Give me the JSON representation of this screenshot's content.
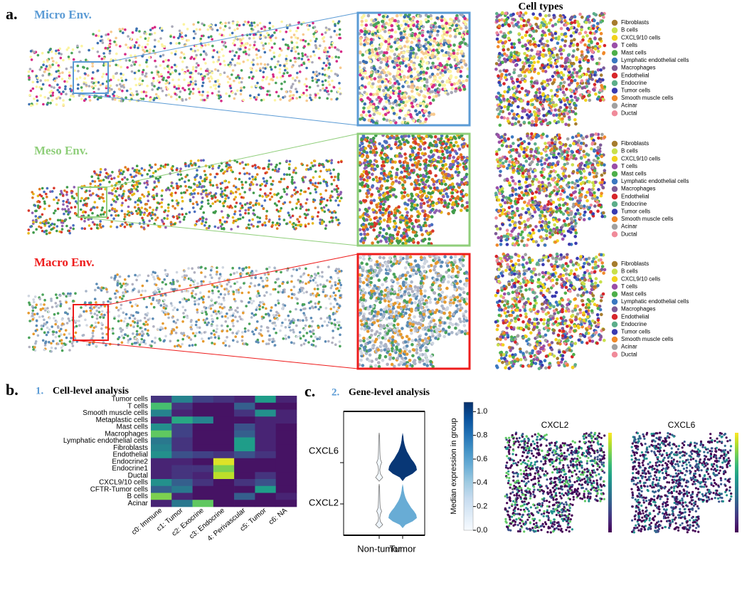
{
  "panel_a": {
    "label": "a.",
    "cell_types_title": "Cell types",
    "rows": [
      {
        "title": "Micro Env.",
        "color": "#5b9bd5"
      },
      {
        "title": "Meso Env.",
        "color": "#8fce7a"
      },
      {
        "title": "Macro Env.",
        "color": "#ee1c1c"
      }
    ],
    "cell_types": [
      {
        "name": "Fibroblasts",
        "color": "#a67c2e"
      },
      {
        "name": "B cells",
        "color": "#c9e04a"
      },
      {
        "name": "CXCL9/10 cells",
        "color": "#f2d21b"
      },
      {
        "name": "T cells",
        "color": "#9b4fa8"
      },
      {
        "name": "Mast cells",
        "color": "#4daf4a"
      },
      {
        "name": "Lymphatic endothelial cells",
        "color": "#3b78c0"
      },
      {
        "name": "Macrophages",
        "color": "#7d5a96"
      },
      {
        "name": "Endothelial",
        "color": "#d7262b"
      },
      {
        "name": "Endocrine",
        "color": "#5cae8a"
      },
      {
        "name": "Tumor cells",
        "color": "#3a3ab0"
      },
      {
        "name": "Smooth muscle cells",
        "color": "#f0892a"
      },
      {
        "name": "Acinar",
        "color": "#a0a0a0"
      },
      {
        "name": "Ductal",
        "color": "#f08a9a"
      }
    ]
  },
  "panel_b": {
    "label": "b.",
    "step": "1.",
    "title": "Cell-level analysis",
    "heatmap": {
      "rows": [
        "Tumor cells",
        "T cells",
        "Smooth muscle cells",
        "Metaplastic cells",
        "Mast cells",
        "Macrophages",
        "Lymphatic endothelial cells",
        "Fibroblasts",
        "Endothelial",
        "Endocrine2",
        "Endocrine1",
        "Ductal",
        "CXCL9/10 cells",
        "CFTR-Tumor cells",
        "B cells",
        "Acinar"
      ],
      "columns": [
        "c0: Immune",
        "c1: Tumor",
        "c2: Exocrine",
        "c3: Endocrine",
        "4: Perivascular",
        "c5: Tumor",
        "c6: NA"
      ],
      "values": [
        [
          0.15,
          0.45,
          0.2,
          0.15,
          0.1,
          0.55,
          0.1
        ],
        [
          0.7,
          0.15,
          0.05,
          0.05,
          0.3,
          0.05,
          0.05
        ],
        [
          0.45,
          0.1,
          0.05,
          0.05,
          0.15,
          0.5,
          0.1
        ],
        [
          0.1,
          0.6,
          0.45,
          0.05,
          0.05,
          0.1,
          0.1
        ],
        [
          0.5,
          0.2,
          0.05,
          0.05,
          0.25,
          0.1,
          0.05
        ],
        [
          0.75,
          0.2,
          0.05,
          0.05,
          0.3,
          0.1,
          0.05
        ],
        [
          0.4,
          0.15,
          0.05,
          0.05,
          0.55,
          0.1,
          0.05
        ],
        [
          0.45,
          0.15,
          0.05,
          0.05,
          0.55,
          0.1,
          0.05
        ],
        [
          0.5,
          0.25,
          0.2,
          0.15,
          0.25,
          0.15,
          0.05
        ],
        [
          0.1,
          0.1,
          0.05,
          0.95,
          0.05,
          0.05,
          0.05
        ],
        [
          0.1,
          0.15,
          0.15,
          0.8,
          0.05,
          0.05,
          0.05
        ],
        [
          0.1,
          0.15,
          0.1,
          0.9,
          0.05,
          0.15,
          0.05
        ],
        [
          0.5,
          0.3,
          0.15,
          0.05,
          0.15,
          0.25,
          0.05
        ],
        [
          0.3,
          0.4,
          0.05,
          0.05,
          0.05,
          0.55,
          0.05
        ],
        [
          0.8,
          0.1,
          0.05,
          0.05,
          0.3,
          0.05,
          0.1
        ],
        [
          0.1,
          0.4,
          0.75,
          0.05,
          0.05,
          0.05,
          0.05
        ]
      ]
    }
  },
  "panel_c": {
    "label": "c.",
    "step": "2.",
    "title": "Gene-level analysis",
    "violin": {
      "genes": [
        "CXCL6",
        "CXCL2"
      ],
      "groups": [
        "Non-tumor",
        "Tumor"
      ],
      "median_expression": [
        [
          0.02,
          1.05
        ],
        [
          0.05,
          0.55
        ]
      ],
      "colorbar_label": "Median expression in group",
      "clim": [
        0,
        1.08
      ],
      "ticks": [
        {
          "value": 0,
          "label": "0.0"
        },
        0.2,
        0.4,
        0.6,
        0.8,
        {
          "value": 1,
          "label": "1.0"
        }
      ]
    },
    "maps": [
      {
        "title": "CXCL2"
      },
      {
        "title": "CXCL6"
      }
    ]
  }
}
